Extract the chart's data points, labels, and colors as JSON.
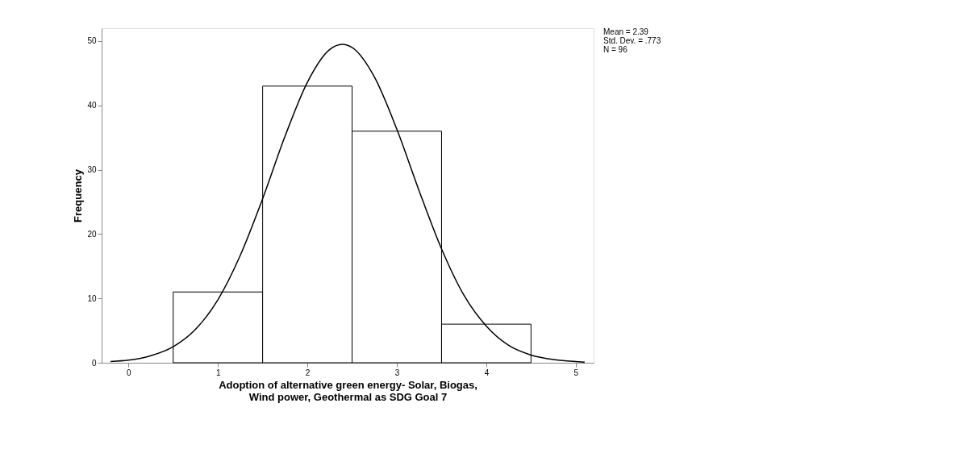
{
  "chart_data": {
    "type": "histogram",
    "xlabel": "Adoption of alternative green energy- Solar, Biogas,\nWind power, Geothermal as SDG Goal 7",
    "ylabel": "Frequency",
    "bins": [
      0.5,
      1.5,
      2.5,
      3.5,
      4.5
    ],
    "values": [
      11,
      43,
      36,
      6
    ],
    "color": "#ffffff",
    "series": [
      {
        "type": "line",
        "color": "#000000",
        "x": [
          -0.2,
          0,
          0.25,
          0.5,
          0.75,
          1,
          1.25,
          1.5,
          1.75,
          2,
          2.25,
          2.39,
          2.5,
          2.75,
          3,
          3.25,
          3.5,
          3.75,
          4,
          4.25,
          4.5,
          4.75,
          5,
          5.1
        ],
        "values": [
          0.2,
          0.4,
          1.1,
          2.5,
          5.2,
          9.8,
          16.7,
          25.5,
          35.2,
          43.6,
          48.7,
          49.5,
          49.0,
          44.4,
          36.3,
          26.7,
          17.7,
          10.5,
          5.7,
          2.7,
          1.2,
          0.5,
          0.2,
          0.1
        ]
      }
    ],
    "xlim": [
      -0.3,
      5.2
    ],
    "ylim": [
      0,
      52
    ],
    "xticks": [
      0,
      1,
      2,
      3,
      4,
      5
    ],
    "yticks": [
      0,
      10,
      20,
      30,
      40,
      50
    ],
    "grid": false,
    "annotations": [
      "Mean = 2.39",
      "Std. Dev. = .773",
      "N = 96"
    ]
  }
}
